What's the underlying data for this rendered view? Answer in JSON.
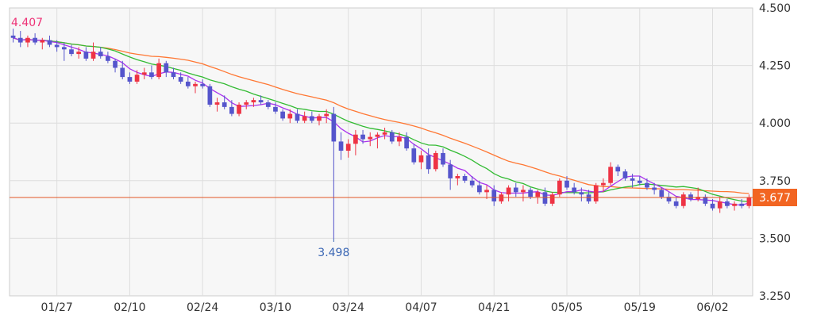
{
  "colors": {
    "plot_bg": "#f7f7f7",
    "grid": "#dedede",
    "up": "#ee3344",
    "down": "#5555cc",
    "ma_short": "#aa33ee",
    "ma_mid": "#33bb33",
    "ma_long": "#ff7733",
    "current_line": "#e05525",
    "current_badge": "#f26522",
    "high_label": "#ee3377",
    "low_label": "#3a66b4"
  },
  "chart_data": {
    "type": "candlestick",
    "ylim": [
      3.25,
      4.5
    ],
    "y_ticks": [
      "4.500",
      "4.250",
      "4.000",
      "3.750",
      "3.500",
      "3.250"
    ],
    "x_ticks": [
      "01/27",
      "02/10",
      "02/24",
      "03/10",
      "03/24",
      "04/07",
      "04/21",
      "05/05",
      "05/19",
      "06/02"
    ],
    "x_tick_index": [
      6,
      16,
      26,
      36,
      46,
      56,
      66,
      76,
      86,
      96
    ],
    "n_bars": 102,
    "current_value": 3.677,
    "current_label": "3.677",
    "high_value": 4.407,
    "high_label": "4.407",
    "high_index": 0,
    "low_value": 3.498,
    "low_label": "3.498",
    "low_index": 44,
    "candles": [
      [
        4.38,
        4.41,
        4.35,
        4.37
      ],
      [
        4.37,
        4.4,
        4.33,
        4.35
      ],
      [
        4.35,
        4.38,
        4.33,
        4.37
      ],
      [
        4.37,
        4.39,
        4.34,
        4.35
      ],
      [
        4.35,
        4.37,
        4.32,
        4.36
      ],
      [
        4.36,
        4.38,
        4.33,
        4.34
      ],
      [
        4.34,
        4.36,
        4.31,
        4.33
      ],
      [
        4.33,
        4.35,
        4.27,
        4.32
      ],
      [
        4.32,
        4.34,
        4.29,
        4.3
      ],
      [
        4.3,
        4.33,
        4.28,
        4.31
      ],
      [
        4.31,
        4.33,
        4.27,
        4.28
      ],
      [
        4.28,
        4.35,
        4.27,
        4.31
      ],
      [
        4.31,
        4.33,
        4.28,
        4.29
      ],
      [
        4.29,
        4.31,
        4.26,
        4.27
      ],
      [
        4.27,
        4.28,
        4.22,
        4.24
      ],
      [
        4.24,
        4.27,
        4.19,
        4.2
      ],
      [
        4.2,
        4.22,
        4.17,
        4.18
      ],
      [
        4.18,
        4.23,
        4.17,
        4.21
      ],
      [
        4.21,
        4.24,
        4.19,
        4.22
      ],
      [
        4.22,
        4.25,
        4.19,
        4.2
      ],
      [
        4.2,
        4.28,
        4.19,
        4.26
      ],
      [
        4.26,
        4.27,
        4.2,
        4.22
      ],
      [
        4.22,
        4.24,
        4.19,
        4.2
      ],
      [
        4.2,
        4.22,
        4.17,
        4.18
      ],
      [
        4.18,
        4.2,
        4.15,
        4.16
      ],
      [
        4.16,
        4.18,
        4.13,
        4.17
      ],
      [
        4.17,
        4.19,
        4.15,
        4.16
      ],
      [
        4.16,
        4.17,
        4.07,
        4.08
      ],
      [
        4.08,
        4.11,
        4.05,
        4.09
      ],
      [
        4.09,
        4.12,
        4.06,
        4.07
      ],
      [
        4.07,
        4.1,
        4.03,
        4.04
      ],
      [
        4.04,
        4.09,
        4.03,
        4.08
      ],
      [
        4.08,
        4.1,
        4.06,
        4.09
      ],
      [
        4.09,
        4.11,
        4.07,
        4.1
      ],
      [
        4.1,
        4.12,
        4.08,
        4.09
      ],
      [
        4.09,
        4.1,
        4.06,
        4.07
      ],
      [
        4.07,
        4.09,
        4.04,
        4.05
      ],
      [
        4.05,
        4.06,
        4.01,
        4.02
      ],
      [
        4.02,
        4.06,
        4.0,
        4.04
      ],
      [
        4.04,
        4.06,
        4.0,
        4.01
      ],
      [
        4.01,
        4.05,
        4.0,
        4.03
      ],
      [
        4.03,
        4.05,
        4.0,
        4.01
      ],
      [
        4.01,
        4.04,
        3.99,
        4.03
      ],
      [
        4.03,
        4.06,
        4.0,
        4.04
      ],
      [
        4.04,
        4.07,
        3.498,
        3.92
      ],
      [
        3.92,
        3.96,
        3.84,
        3.88
      ],
      [
        3.88,
        3.93,
        3.85,
        3.91
      ],
      [
        3.91,
        3.97,
        3.86,
        3.95
      ],
      [
        3.95,
        3.97,
        3.91,
        3.93
      ],
      [
        3.93,
        3.96,
        3.9,
        3.94
      ],
      [
        3.94,
        3.96,
        3.89,
        3.95
      ],
      [
        3.95,
        3.98,
        3.93,
        3.96
      ],
      [
        3.96,
        3.97,
        3.91,
        3.92
      ],
      [
        3.92,
        3.96,
        3.9,
        3.94
      ],
      [
        3.94,
        3.96,
        3.88,
        3.89
      ],
      [
        3.89,
        3.91,
        3.82,
        3.83
      ],
      [
        3.83,
        3.88,
        3.8,
        3.86
      ],
      [
        3.86,
        3.89,
        3.78,
        3.8
      ],
      [
        3.8,
        3.88,
        3.79,
        3.87
      ],
      [
        3.87,
        3.89,
        3.81,
        3.82
      ],
      [
        3.82,
        3.84,
        3.71,
        3.76
      ],
      [
        3.76,
        3.78,
        3.73,
        3.77
      ],
      [
        3.77,
        3.78,
        3.74,
        3.75
      ],
      [
        3.75,
        3.77,
        3.72,
        3.73
      ],
      [
        3.73,
        3.75,
        3.69,
        3.7
      ],
      [
        3.7,
        3.73,
        3.67,
        3.71
      ],
      [
        3.71,
        3.73,
        3.64,
        3.66
      ],
      [
        3.66,
        3.7,
        3.65,
        3.69
      ],
      [
        3.69,
        3.73,
        3.66,
        3.72
      ],
      [
        3.72,
        3.74,
        3.68,
        3.7
      ],
      [
        3.7,
        3.73,
        3.66,
        3.71
      ],
      [
        3.71,
        3.72,
        3.67,
        3.68
      ],
      [
        3.68,
        3.71,
        3.65,
        3.7
      ],
      [
        3.7,
        3.72,
        3.64,
        3.65
      ],
      [
        3.65,
        3.7,
        3.64,
        3.69
      ],
      [
        3.69,
        3.76,
        3.68,
        3.75
      ],
      [
        3.75,
        3.77,
        3.71,
        3.72
      ],
      [
        3.72,
        3.74,
        3.69,
        3.7
      ],
      [
        3.7,
        3.72,
        3.66,
        3.69
      ],
      [
        3.69,
        3.71,
        3.65,
        3.66
      ],
      [
        3.66,
        3.74,
        3.65,
        3.73
      ],
      [
        3.73,
        3.76,
        3.7,
        3.74
      ],
      [
        3.74,
        3.83,
        3.73,
        3.81
      ],
      [
        3.81,
        3.82,
        3.77,
        3.79
      ],
      [
        3.79,
        3.8,
        3.75,
        3.76
      ],
      [
        3.76,
        3.78,
        3.72,
        3.75
      ],
      [
        3.75,
        3.77,
        3.73,
        3.74
      ],
      [
        3.74,
        3.76,
        3.71,
        3.72
      ],
      [
        3.72,
        3.74,
        3.69,
        3.71
      ],
      [
        3.71,
        3.72,
        3.67,
        3.68
      ],
      [
        3.68,
        3.7,
        3.65,
        3.66
      ],
      [
        3.66,
        3.68,
        3.63,
        3.64
      ],
      [
        3.64,
        3.7,
        3.63,
        3.69
      ],
      [
        3.69,
        3.7,
        3.66,
        3.67
      ],
      [
        3.67,
        3.72,
        3.66,
        3.68
      ],
      [
        3.68,
        3.69,
        3.64,
        3.65
      ],
      [
        3.65,
        3.67,
        3.62,
        3.63
      ],
      [
        3.63,
        3.68,
        3.61,
        3.66
      ],
      [
        3.66,
        3.67,
        3.63,
        3.64
      ],
      [
        3.64,
        3.66,
        3.62,
        3.65
      ],
      [
        3.65,
        3.67,
        3.63,
        3.64
      ],
      [
        3.64,
        3.69,
        3.63,
        3.677
      ]
    ]
  }
}
